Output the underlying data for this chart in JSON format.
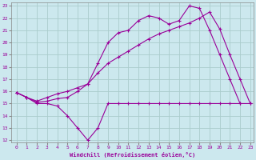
{
  "xlabel": "Windchill (Refroidissement éolien,°C)",
  "bg_color": "#cce8ee",
  "grid_color": "#aacccc",
  "line_color": "#990099",
  "xlim": [
    -0.5,
    23.3
  ],
  "ylim": [
    11.8,
    23.3
  ],
  "xticks": [
    0,
    1,
    2,
    3,
    4,
    5,
    6,
    7,
    8,
    9,
    10,
    11,
    12,
    13,
    14,
    15,
    16,
    17,
    18,
    19,
    20,
    21,
    22,
    23
  ],
  "yticks": [
    12,
    13,
    14,
    15,
    16,
    17,
    18,
    19,
    20,
    21,
    22,
    23
  ],
  "line1_x": [
    0,
    1,
    2,
    3,
    4,
    5,
    6,
    7,
    8,
    9,
    10,
    11,
    12,
    13,
    14,
    15,
    16,
    17,
    18,
    19,
    20,
    21,
    22,
    23
  ],
  "line1_y": [
    15.9,
    15.5,
    15.0,
    15.0,
    14.8,
    14.0,
    13.0,
    12.0,
    13.0,
    15.0,
    15.0,
    15.0,
    15.0,
    15.0,
    15.0,
    15.0,
    15.0,
    15.0,
    15.0,
    15.0,
    15.0,
    15.0,
    15.0,
    15.0
  ],
  "line2_x": [
    0,
    1,
    2,
    3,
    4,
    5,
    6,
    7,
    8,
    9,
    10,
    11,
    12,
    13,
    14,
    15,
    16,
    17,
    18,
    19,
    20,
    21,
    22
  ],
  "line2_y": [
    15.9,
    15.5,
    15.1,
    15.2,
    15.4,
    15.5,
    16.0,
    16.6,
    18.3,
    20.0,
    20.8,
    21.0,
    21.8,
    22.2,
    22.0,
    21.5,
    21.8,
    23.0,
    22.8,
    21.0,
    19.0,
    17.0,
    15.0
  ],
  "line3_x": [
    0,
    1,
    2,
    3,
    4,
    5,
    6,
    7,
    8,
    9,
    10,
    11,
    12,
    13,
    14,
    15,
    16,
    17,
    18,
    19,
    20,
    21,
    22,
    23
  ],
  "line3_y": [
    15.9,
    15.5,
    15.2,
    15.5,
    15.8,
    16.0,
    16.3,
    16.6,
    17.5,
    18.3,
    18.8,
    19.3,
    19.8,
    20.3,
    20.7,
    21.0,
    21.3,
    21.6,
    22.0,
    22.5,
    21.1,
    19.0,
    17.0,
    15.0
  ]
}
